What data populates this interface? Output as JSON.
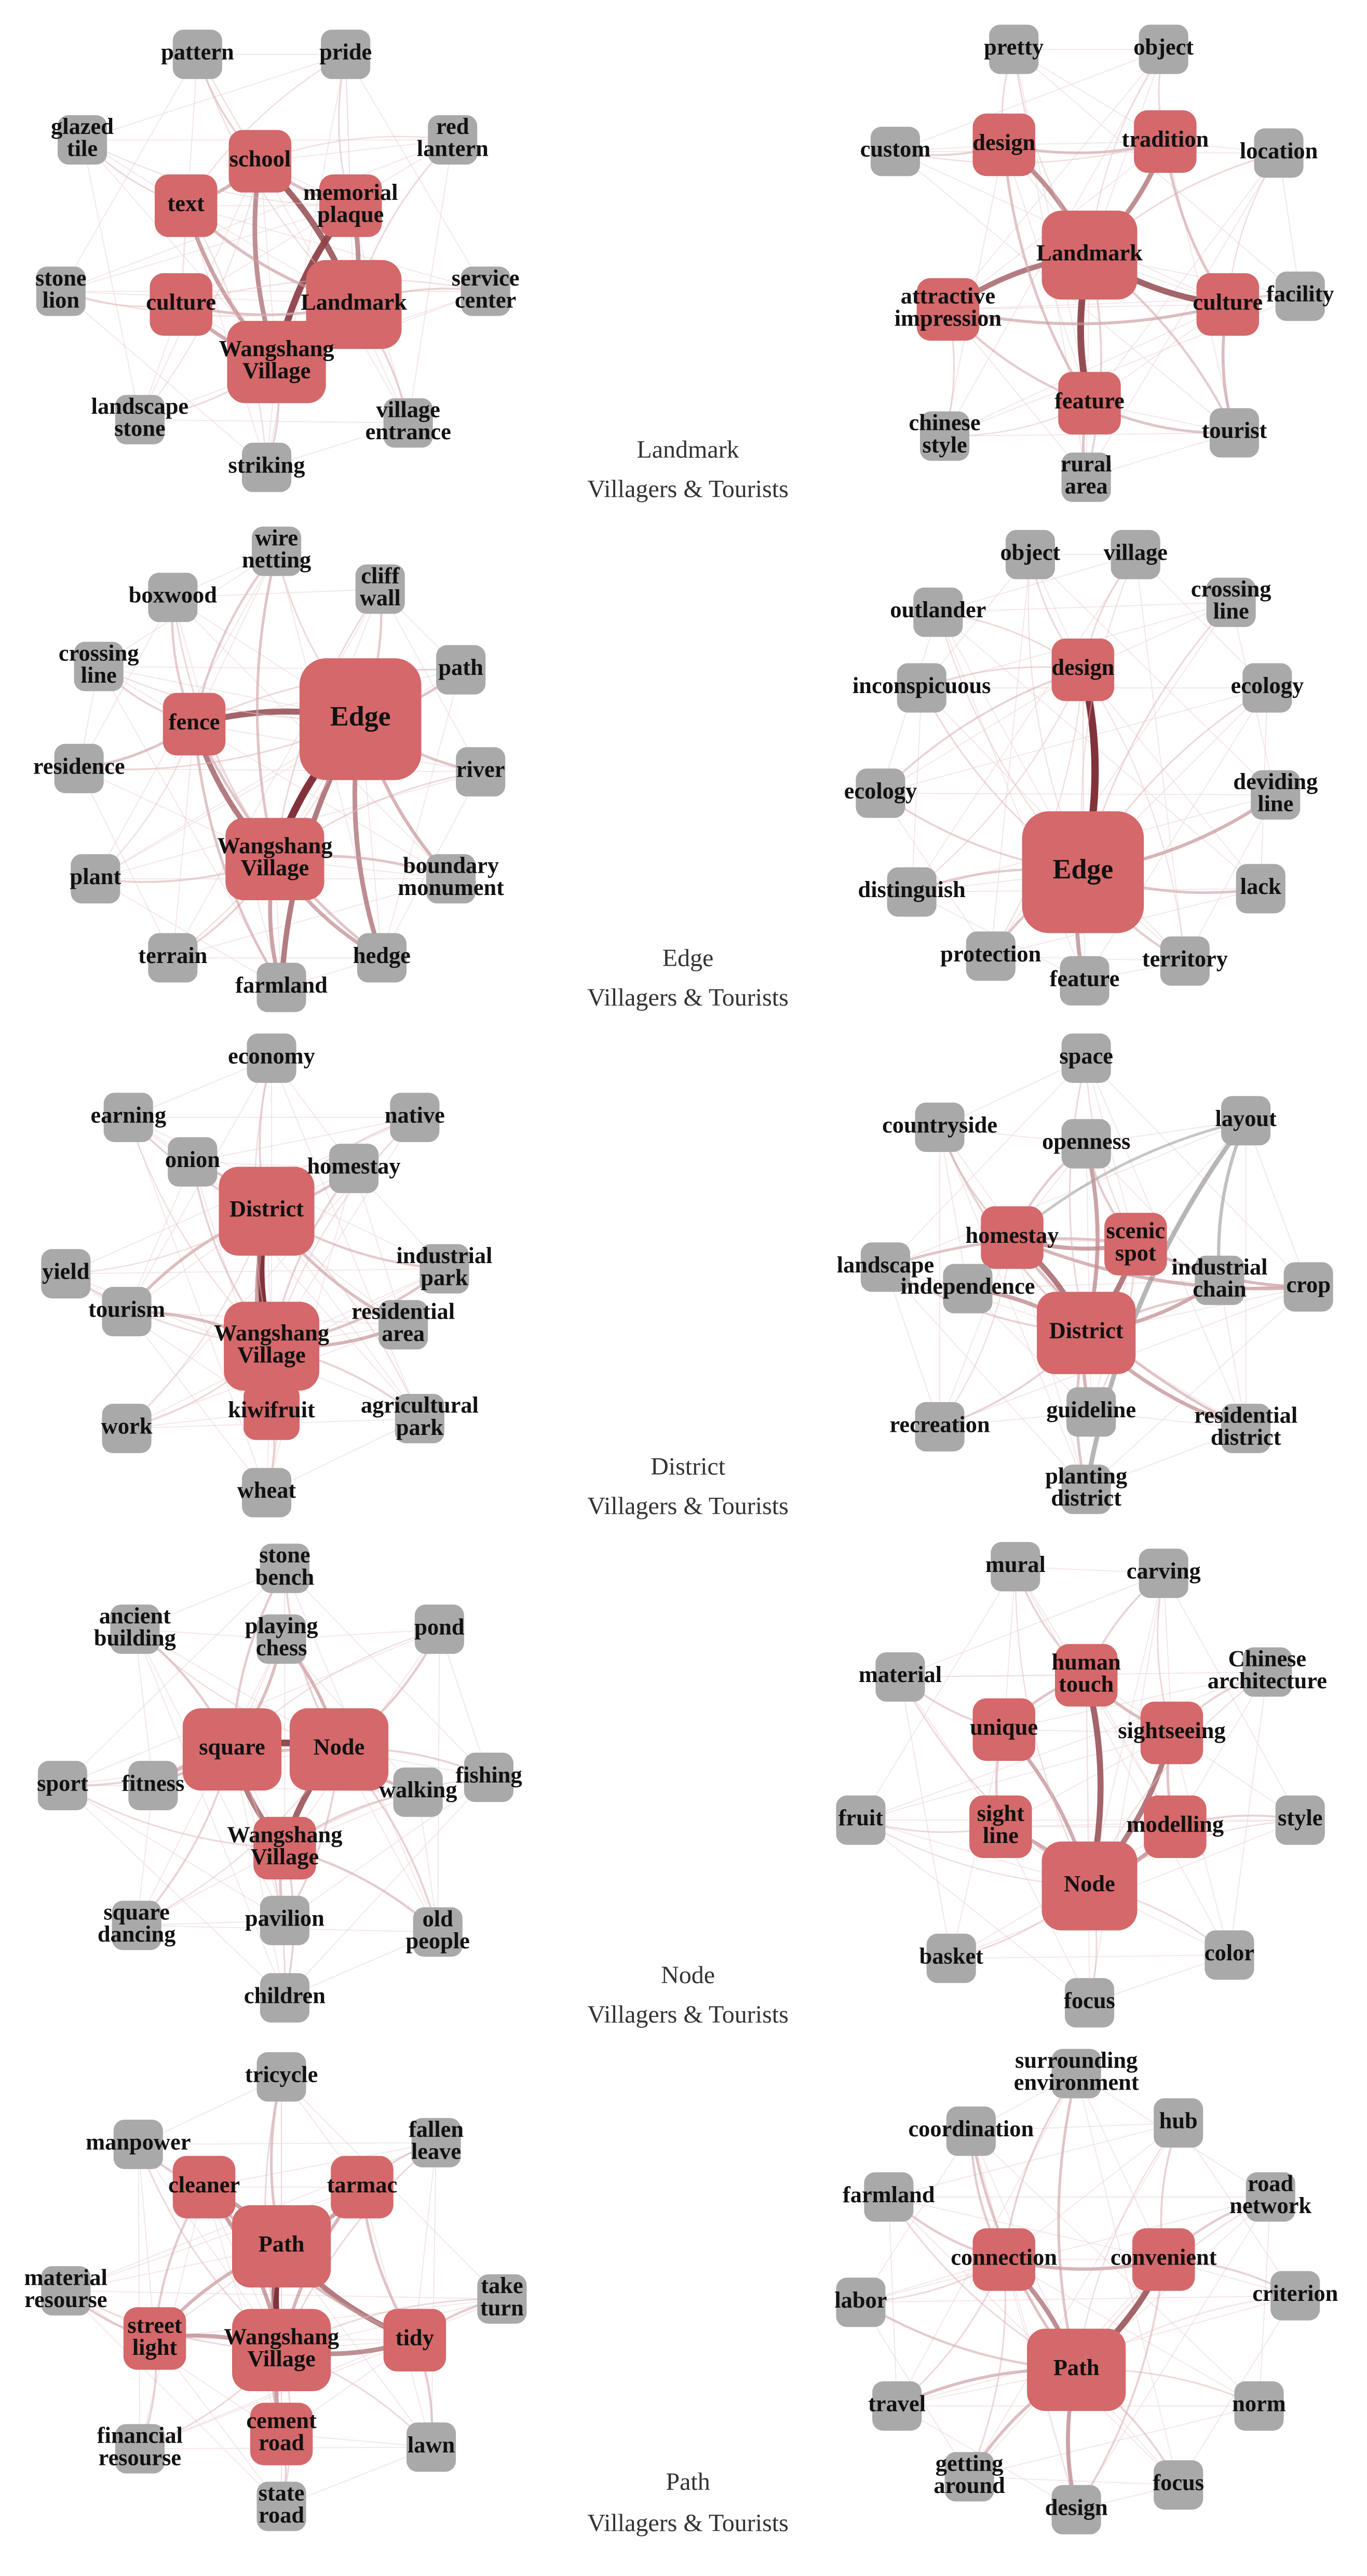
{
  "colors": {
    "core_node": "#d4686a",
    "peripheral_node": "#a9a9a9",
    "edge_strong": "#8b3a3f",
    "edge_light": "#d9a7aa",
    "edge_gray": "#a0a0a0"
  },
  "panels": [
    {
      "id": "landmark",
      "caption_line1": "Landmark",
      "caption_line2": "Villagers & Tourists",
      "villagers": {
        "nodes": [
          {
            "id": "landmark",
            "label": "Landmark",
            "core": true,
            "size": "xl"
          },
          {
            "id": "wangshang",
            "label": "Wangshang Village",
            "core": true,
            "size": "l"
          },
          {
            "id": "school",
            "label": "school",
            "core": true,
            "size": "m"
          },
          {
            "id": "memorial",
            "label": "memorial plaque",
            "core": true,
            "size": "m"
          },
          {
            "id": "text",
            "label": "text",
            "core": true,
            "size": "m"
          },
          {
            "id": "culture",
            "label": "culture",
            "core": true,
            "size": "m"
          },
          {
            "id": "pattern",
            "label": "pattern",
            "core": false
          },
          {
            "id": "pride",
            "label": "pride",
            "core": false
          },
          {
            "id": "glazed",
            "label": "glazed tile",
            "core": false
          },
          {
            "id": "red",
            "label": "red lantern",
            "core": false
          },
          {
            "id": "stone",
            "label": "stone lion",
            "core": false
          },
          {
            "id": "service",
            "label": "service center",
            "core": false
          },
          {
            "id": "landscape",
            "label": "landscape stone",
            "core": false
          },
          {
            "id": "village_entrance",
            "label": "village entrance",
            "core": false
          },
          {
            "id": "striking",
            "label": "striking",
            "core": false
          }
        ]
      },
      "tourists": {
        "nodes": [
          {
            "id": "landmark",
            "label": "Landmark",
            "core": true,
            "size": "xl"
          },
          {
            "id": "design",
            "label": "design",
            "core": true,
            "size": "m"
          },
          {
            "id": "tradition",
            "label": "tradition",
            "core": true,
            "size": "m"
          },
          {
            "id": "impression",
            "label": "attractive impression",
            "core": true,
            "size": "m"
          },
          {
            "id": "culture",
            "label": "culture",
            "core": true,
            "size": "m"
          },
          {
            "id": "feature",
            "label": "feature",
            "core": true,
            "size": "m"
          },
          {
            "id": "pretty",
            "label": "pretty",
            "core": false
          },
          {
            "id": "object",
            "label": "object",
            "core": false
          },
          {
            "id": "custom",
            "label": "custom",
            "core": false
          },
          {
            "id": "location",
            "label": "location",
            "core": false
          },
          {
            "id": "facility",
            "label": "facility",
            "core": false
          },
          {
            "id": "chinese",
            "label": "chinese style",
            "core": false
          },
          {
            "id": "tourist",
            "label": "tourist",
            "core": false
          },
          {
            "id": "rural",
            "label": "rural area",
            "core": false
          }
        ]
      }
    },
    {
      "id": "edge",
      "caption_line1": "Edge",
      "caption_line2": "Villagers & Tourists",
      "villagers": {
        "nodes": [
          {
            "id": "edge",
            "label": "Edge",
            "core": true,
            "size": "xxl"
          },
          {
            "id": "wangshang",
            "label": "Wangshang Village",
            "core": true,
            "size": "l"
          },
          {
            "id": "fence",
            "label": "fence",
            "core": true,
            "size": "m"
          },
          {
            "id": "wire",
            "label": "wire netting",
            "core": false
          },
          {
            "id": "boxwood",
            "label": "boxwood",
            "core": false
          },
          {
            "id": "cliff",
            "label": "cliff wall",
            "core": false
          },
          {
            "id": "path",
            "label": "path",
            "core": false
          },
          {
            "id": "crossing",
            "label": "crossing line",
            "core": false
          },
          {
            "id": "residence",
            "label": "residence",
            "core": false
          },
          {
            "id": "river",
            "label": "river",
            "core": false
          },
          {
            "id": "plant",
            "label": "plant",
            "core": false
          },
          {
            "id": "boundary",
            "label": "boundary monument",
            "core": false
          },
          {
            "id": "terrain",
            "label": "terrain",
            "core": false
          },
          {
            "id": "hedge",
            "label": "hedge",
            "core": false
          },
          {
            "id": "farmland",
            "label": "farmland",
            "core": false
          }
        ]
      },
      "tourists": {
        "nodes": [
          {
            "id": "edge",
            "label": "Edge",
            "core": true,
            "size": "xxl"
          },
          {
            "id": "design",
            "label": "design",
            "core": true,
            "size": "m"
          },
          {
            "id": "object",
            "label": "object",
            "core": false
          },
          {
            "id": "village",
            "label": "village",
            "core": false
          },
          {
            "id": "outlander",
            "label": "outlander",
            "core": false
          },
          {
            "id": "crossing",
            "label": "crossing line",
            "core": false
          },
          {
            "id": "inconspicuous",
            "label": "inconspicuous",
            "core": false
          },
          {
            "id": "ecology_r",
            "label": "ecology",
            "core": false
          },
          {
            "id": "ecology_l",
            "label": "ecology",
            "core": false
          },
          {
            "id": "deviding",
            "label": "deviding line",
            "core": false
          },
          {
            "id": "distinguish",
            "label": "distinguish",
            "core": false
          },
          {
            "id": "lack",
            "label": "lack",
            "core": false
          },
          {
            "id": "protection",
            "label": "protection",
            "core": false
          },
          {
            "id": "territory",
            "label": "territory",
            "core": false
          },
          {
            "id": "feature",
            "label": "feature",
            "core": false
          }
        ]
      }
    },
    {
      "id": "district",
      "caption_line1": "District",
      "caption_line2": "Villagers & Tourists",
      "villagers": {
        "nodes": [
          {
            "id": "district",
            "label": "District",
            "core": true,
            "size": "xl"
          },
          {
            "id": "wangshang",
            "label": "Wangshang Village",
            "core": true,
            "size": "xl"
          },
          {
            "id": "kiwifruit",
            "label": "kiwifruit",
            "core": true,
            "size": "s"
          },
          {
            "id": "economy",
            "label": "economy",
            "core": false
          },
          {
            "id": "earning",
            "label": "earning",
            "core": false
          },
          {
            "id": "native",
            "label": "native",
            "core": false
          },
          {
            "id": "onion",
            "label": "onion",
            "core": false
          },
          {
            "id": "homestay",
            "label": "homestay",
            "core": false
          },
          {
            "id": "industrial",
            "label": "industrial park",
            "core": false
          },
          {
            "id": "yield",
            "label": "yield",
            "core": false
          },
          {
            "id": "tourism",
            "label": "tourism",
            "core": false
          },
          {
            "id": "residential",
            "label": "residential area",
            "core": false
          },
          {
            "id": "work",
            "label": "work",
            "core": false
          },
          {
            "id": "agricultural",
            "label": "agricultural park",
            "core": false
          },
          {
            "id": "wheat",
            "label": "wheat",
            "core": false
          }
        ]
      },
      "tourists": {
        "nodes": [
          {
            "id": "district",
            "label": "District",
            "core": true,
            "size": "l"
          },
          {
            "id": "homestay",
            "label": "homestay",
            "core": true,
            "size": "m"
          },
          {
            "id": "scenic",
            "label": "scenic spot",
            "core": true,
            "size": "m"
          },
          {
            "id": "space",
            "label": "space",
            "core": false
          },
          {
            "id": "countryside",
            "label": "countryside",
            "core": false
          },
          {
            "id": "openness",
            "label": "openness",
            "core": false
          },
          {
            "id": "layout",
            "label": "layout",
            "core": false
          },
          {
            "id": "landscape",
            "label": "landscape",
            "core": false
          },
          {
            "id": "independence",
            "label": "independence",
            "core": false
          },
          {
            "id": "industrial",
            "label": "industrial chain",
            "core": false
          },
          {
            "id": "crop",
            "label": "crop",
            "core": false
          },
          {
            "id": "recreation",
            "label": "recreation",
            "core": false
          },
          {
            "id": "guideline",
            "label": "guideline",
            "core": false
          },
          {
            "id": "residential",
            "label": "residential district",
            "core": false
          },
          {
            "id": "planting",
            "label": "planting district",
            "core": false
          }
        ]
      }
    },
    {
      "id": "node",
      "caption_line1": "Node",
      "caption_line2": "Villagers & Tourists",
      "villagers": {
        "nodes": [
          {
            "id": "node",
            "label": "Node",
            "core": true,
            "size": "l"
          },
          {
            "id": "square",
            "label": "square",
            "core": true,
            "size": "l"
          },
          {
            "id": "wangshang",
            "label": "Wangshang Village",
            "core": true,
            "size": "m"
          },
          {
            "id": "stone",
            "label": "stone bench",
            "core": false
          },
          {
            "id": "ancient",
            "label": "ancient building",
            "core": false
          },
          {
            "id": "chess",
            "label": "playing chess",
            "core": false
          },
          {
            "id": "pond",
            "label": "pond",
            "core": false
          },
          {
            "id": "sport",
            "label": "sport",
            "core": false
          },
          {
            "id": "fitness",
            "label": "fitness",
            "core": false
          },
          {
            "id": "walking",
            "label": "walking",
            "core": false
          },
          {
            "id": "fishing",
            "label": "fishing",
            "core": false
          },
          {
            "id": "pavilion",
            "label": "pavilion",
            "core": false
          },
          {
            "id": "square_dancing",
            "label": "square dancing",
            "core": false
          },
          {
            "id": "old",
            "label": "old people",
            "core": false
          },
          {
            "id": "children",
            "label": "children",
            "core": false
          }
        ]
      },
      "tourists": {
        "nodes": [
          {
            "id": "node",
            "label": "Node",
            "core": true,
            "size": "xl"
          },
          {
            "id": "human",
            "label": "human touch",
            "core": true,
            "size": "m"
          },
          {
            "id": "unique",
            "label": "unique",
            "core": true,
            "size": "m"
          },
          {
            "id": "sightseeing",
            "label": "sightseeing",
            "core": true,
            "size": "m"
          },
          {
            "id": "sight",
            "label": "sight line",
            "core": true,
            "size": "m"
          },
          {
            "id": "modelling",
            "label": "modelling",
            "core": true,
            "size": "m"
          },
          {
            "id": "mural",
            "label": "mural",
            "core": false
          },
          {
            "id": "carving",
            "label": "carving",
            "core": false
          },
          {
            "id": "material",
            "label": "material",
            "core": false
          },
          {
            "id": "chinese",
            "label": "Chinese architecture",
            "core": false
          },
          {
            "id": "fruit",
            "label": "fruit",
            "core": false
          },
          {
            "id": "style",
            "label": "style",
            "core": false
          },
          {
            "id": "basket",
            "label": "basket",
            "core": false
          },
          {
            "id": "color",
            "label": "color",
            "core": false
          },
          {
            "id": "focus",
            "label": "focus",
            "core": false
          }
        ]
      }
    },
    {
      "id": "path",
      "caption_line1": "Path",
      "caption_line2": "Villagers & Tourists",
      "villagers": {
        "nodes": [
          {
            "id": "path",
            "label": "Path",
            "core": true,
            "size": "l"
          },
          {
            "id": "wangshang",
            "label": "Wangshang Village",
            "core": true,
            "size": "l"
          },
          {
            "id": "cleaner",
            "label": "cleaner",
            "core": true,
            "size": "m"
          },
          {
            "id": "tarmac",
            "label": "tarmac",
            "core": true,
            "size": "m"
          },
          {
            "id": "street",
            "label": "street light",
            "core": true,
            "size": "m"
          },
          {
            "id": "tidy",
            "label": "tidy",
            "core": true,
            "size": "m"
          },
          {
            "id": "cement",
            "label": "cement road",
            "core": true,
            "size": "m"
          },
          {
            "id": "tricycle",
            "label": "tricycle",
            "core": false
          },
          {
            "id": "manpower",
            "label": "manpower",
            "core": false
          },
          {
            "id": "fallen",
            "label": "fallen leave",
            "core": false
          },
          {
            "id": "material",
            "label": "material resourse",
            "core": false
          },
          {
            "id": "take",
            "label": "take turn",
            "core": false
          },
          {
            "id": "financial",
            "label": "financial resourse",
            "core": false
          },
          {
            "id": "lawn",
            "label": "lawn",
            "core": false
          },
          {
            "id": "state",
            "label": "state road",
            "core": false
          }
        ]
      },
      "tourists": {
        "nodes": [
          {
            "id": "path",
            "label": "Path",
            "core": true,
            "size": "l"
          },
          {
            "id": "connection",
            "label": "connection",
            "core": true,
            "size": "m"
          },
          {
            "id": "convenient",
            "label": "convenient",
            "core": true,
            "size": "m"
          },
          {
            "id": "surrounding",
            "label": "surrounding environment",
            "core": false
          },
          {
            "id": "coordination",
            "label": "coordination",
            "core": false
          },
          {
            "id": "hub",
            "label": "hub",
            "core": false
          },
          {
            "id": "farmland",
            "label": "farmland",
            "core": false
          },
          {
            "id": "road",
            "label": "road network",
            "core": false
          },
          {
            "id": "labor",
            "label": "labor",
            "core": false
          },
          {
            "id": "criterion",
            "label": "criterion",
            "core": false
          },
          {
            "id": "travel",
            "label": "travel",
            "core": false
          },
          {
            "id": "norm",
            "label": "norm",
            "core": false
          },
          {
            "id": "getting",
            "label": "getting around",
            "core": false
          },
          {
            "id": "focus",
            "label": "focus",
            "core": false
          },
          {
            "id": "design",
            "label": "design",
            "core": false
          }
        ]
      }
    }
  ]
}
